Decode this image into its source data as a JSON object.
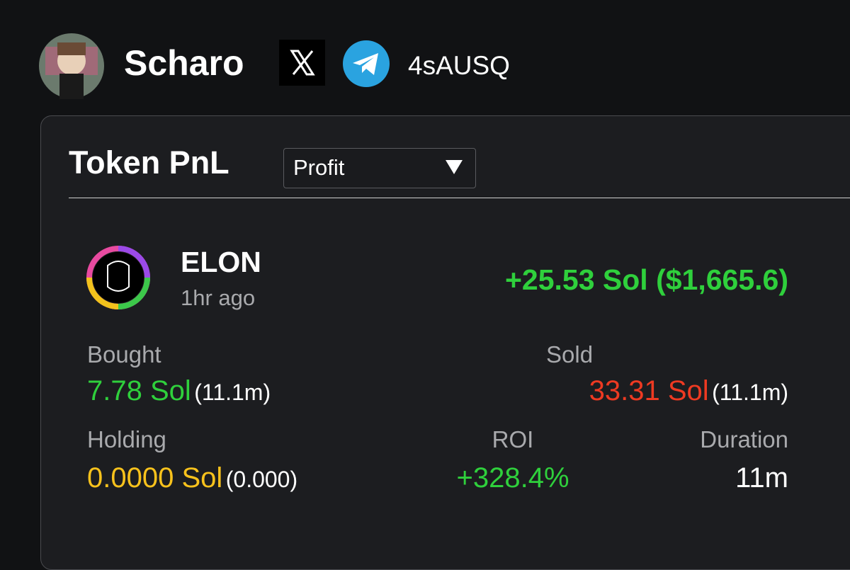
{
  "header": {
    "username": "Scharo",
    "wallet": "4sAUSQ"
  },
  "card": {
    "title": "Token PnL",
    "dropdown": "Profit",
    "token": {
      "name": "ELON",
      "time": "1hr ago",
      "pnl": "+25.53 Sol ($1,665.6)"
    },
    "stats": {
      "bought": {
        "label": "Bought",
        "value": "7.78 Sol",
        "count": "(11.1m)"
      },
      "sold": {
        "label": "Sold",
        "value": "33.31 Sol",
        "count": "(11.1m)"
      },
      "holding": {
        "label": "Holding",
        "value": "0.0000 Sol",
        "count": "(0.000)"
      },
      "roi": {
        "label": "ROI",
        "value": "+328.4%"
      },
      "duration": {
        "label": "Duration",
        "value": "11m"
      }
    }
  }
}
